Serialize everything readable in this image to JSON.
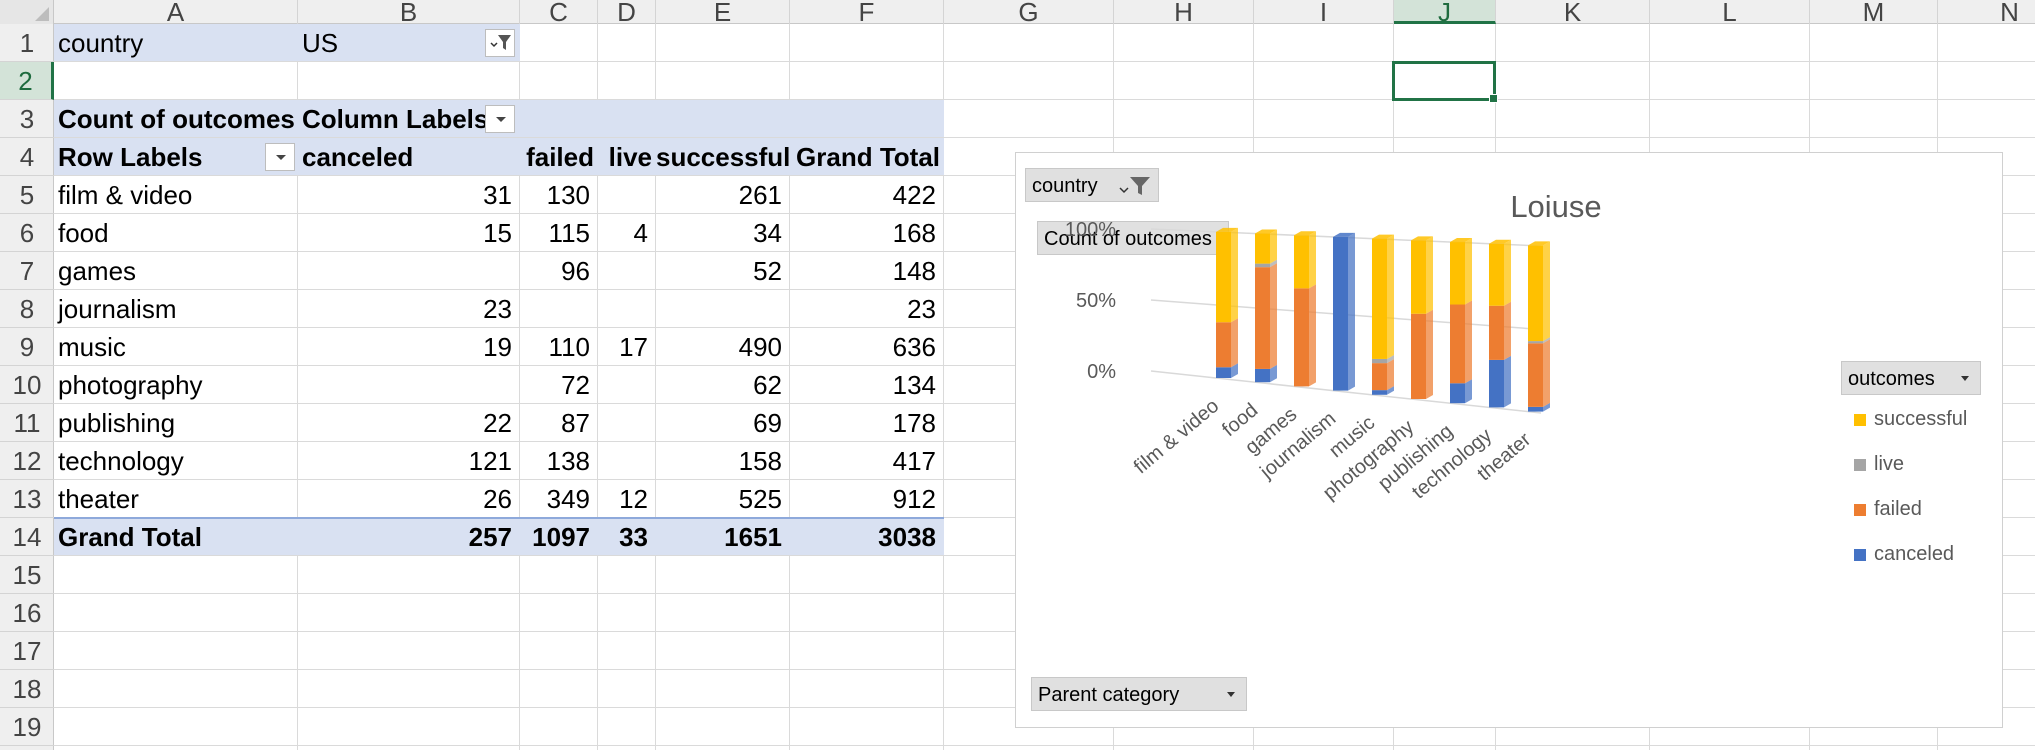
{
  "columns": [
    "A",
    "B",
    "C",
    "D",
    "E",
    "F",
    "G",
    "H",
    "I",
    "J",
    "K",
    "L",
    "M",
    "N"
  ],
  "selected_column": "J",
  "rows": [
    "1",
    "2",
    "3",
    "4",
    "5",
    "6",
    "7",
    "8",
    "9",
    "10",
    "11",
    "12",
    "13",
    "14",
    "15",
    "16",
    "17",
    "18",
    "19"
  ],
  "selected_row": "2",
  "filter": {
    "label": "country",
    "value": "US"
  },
  "pivot": {
    "corner_label": "Count of outcomes",
    "column_labels": "Column Labels",
    "row_labels": "Row Labels",
    "headers": [
      "canceled",
      "failed",
      "live",
      "successful",
      "Grand Total"
    ],
    "rows": [
      {
        "label": "film & video",
        "values": [
          "31",
          "130",
          "",
          "261",
          "422"
        ]
      },
      {
        "label": "food",
        "values": [
          "15",
          "115",
          "4",
          "34",
          "168"
        ]
      },
      {
        "label": "games",
        "values": [
          "",
          "96",
          "",
          "52",
          "148"
        ]
      },
      {
        "label": "journalism",
        "values": [
          "23",
          "",
          "",
          "",
          "23"
        ]
      },
      {
        "label": "music",
        "values": [
          "19",
          "110",
          "17",
          "490",
          "636"
        ]
      },
      {
        "label": "photography",
        "values": [
          "",
          "72",
          "",
          "62",
          "134"
        ]
      },
      {
        "label": "publishing",
        "values": [
          "22",
          "87",
          "",
          "69",
          "178"
        ]
      },
      {
        "label": "technology",
        "values": [
          "121",
          "138",
          "",
          "158",
          "417"
        ]
      },
      {
        "label": "theater",
        "values": [
          "26",
          "349",
          "12",
          "525",
          "912"
        ]
      }
    ],
    "grand_total": {
      "label": "Grand Total",
      "values": [
        "257",
        "1097",
        "33",
        "1651",
        "3038"
      ]
    }
  },
  "chart": {
    "title": "Loiuse",
    "filter_button": "country",
    "value_button": "Count of outcomes",
    "axis_button": "Parent category",
    "legend_button": "outcomes",
    "y_ticks": [
      "100%",
      "50%",
      "0%"
    ],
    "colors": {
      "successful": "#ffc000",
      "live": "#a5a5a5",
      "failed": "#ed7d31",
      "canceled": "#4472c4"
    }
  },
  "chart_data": {
    "type": "bar",
    "stacked": "percent",
    "title": "Loiuse",
    "categories": [
      "film & video",
      "food",
      "games",
      "journalism",
      "music",
      "photography",
      "publishing",
      "technology",
      "theater"
    ],
    "series": [
      {
        "name": "canceled",
        "values": [
          31,
          15,
          0,
          23,
          19,
          0,
          22,
          121,
          26
        ]
      },
      {
        "name": "failed",
        "values": [
          130,
          115,
          96,
          0,
          110,
          72,
          87,
          138,
          349
        ]
      },
      {
        "name": "live",
        "values": [
          0,
          4,
          0,
          0,
          17,
          0,
          0,
          0,
          12
        ]
      },
      {
        "name": "successful",
        "values": [
          261,
          34,
          52,
          0,
          490,
          62,
          69,
          158,
          525
        ]
      }
    ],
    "ylim": [
      0,
      1
    ],
    "legend_position": "right"
  }
}
